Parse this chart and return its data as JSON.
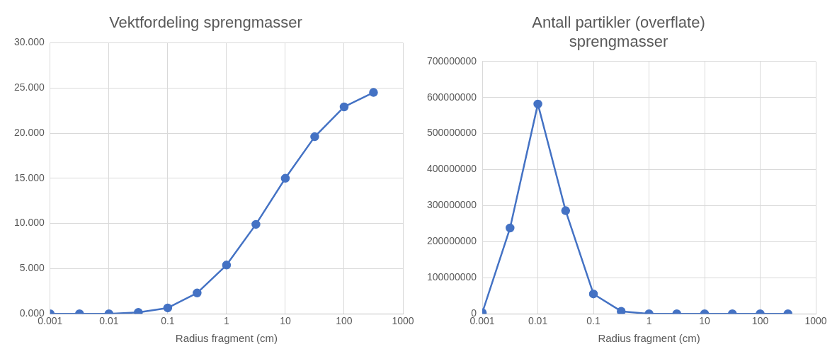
{
  "chart_data": [
    {
      "type": "line",
      "title": "Vektfordeling sprengmasser",
      "xlabel": "Radius fragment (cm)",
      "log": "x",
      "grid": true,
      "legend": false,
      "marker": "circle",
      "line_style": "solid",
      "x": [
        0.001,
        0.00316,
        0.01,
        0.0316,
        0.1,
        0.316,
        1,
        3.16,
        10,
        31.6,
        100,
        316
      ],
      "series": [
        {
          "color": "#4472c4",
          "values": [
            0,
            0,
            0,
            0.15,
            0.65,
            2.3,
            5.4,
            9.9,
            15.0,
            19.6,
            22.9,
            24.5
          ]
        }
      ],
      "xlim": [
        0.001,
        1000
      ],
      "xticks": [
        0.001,
        0.01,
        0.1,
        1,
        10,
        100,
        1000
      ],
      "ylim": [
        0,
        30
      ],
      "yticks": [
        {
          "value": 0,
          "label": "0.000"
        },
        {
          "value": 5,
          "label": "5.000"
        },
        {
          "value": 10,
          "label": "10.000"
        },
        {
          "value": 15,
          "label": "15.000"
        },
        {
          "value": 20,
          "label": "20.000"
        },
        {
          "value": 25,
          "label": "25.000"
        },
        {
          "value": 30,
          "label": "30.000"
        }
      ]
    },
    {
      "type": "line",
      "title": "Antall partikler (overflate) sprengmasser",
      "xlabel": "Radius fragment (cm)",
      "log": "x",
      "grid": true,
      "legend": false,
      "marker": "circle",
      "line_style": "solid",
      "x": [
        0.001,
        0.00316,
        0.01,
        0.0316,
        0.1,
        0.316,
        1,
        3.16,
        10,
        31.6,
        100,
        316
      ],
      "series": [
        {
          "color": "#4472c4",
          "values": [
            3000000,
            238000000,
            582000000,
            286000000,
            55000000,
            7000000,
            0,
            0,
            0,
            0,
            0,
            0
          ]
        }
      ],
      "xlim": [
        0.001,
        1000
      ],
      "xticks": [
        0.001,
        0.01,
        0.1,
        1,
        10,
        100,
        1000
      ],
      "ylim": [
        0,
        700000000
      ],
      "yticks": [
        0,
        100000000,
        200000000,
        300000000,
        400000000,
        500000000,
        600000000,
        700000000
      ]
    }
  ]
}
